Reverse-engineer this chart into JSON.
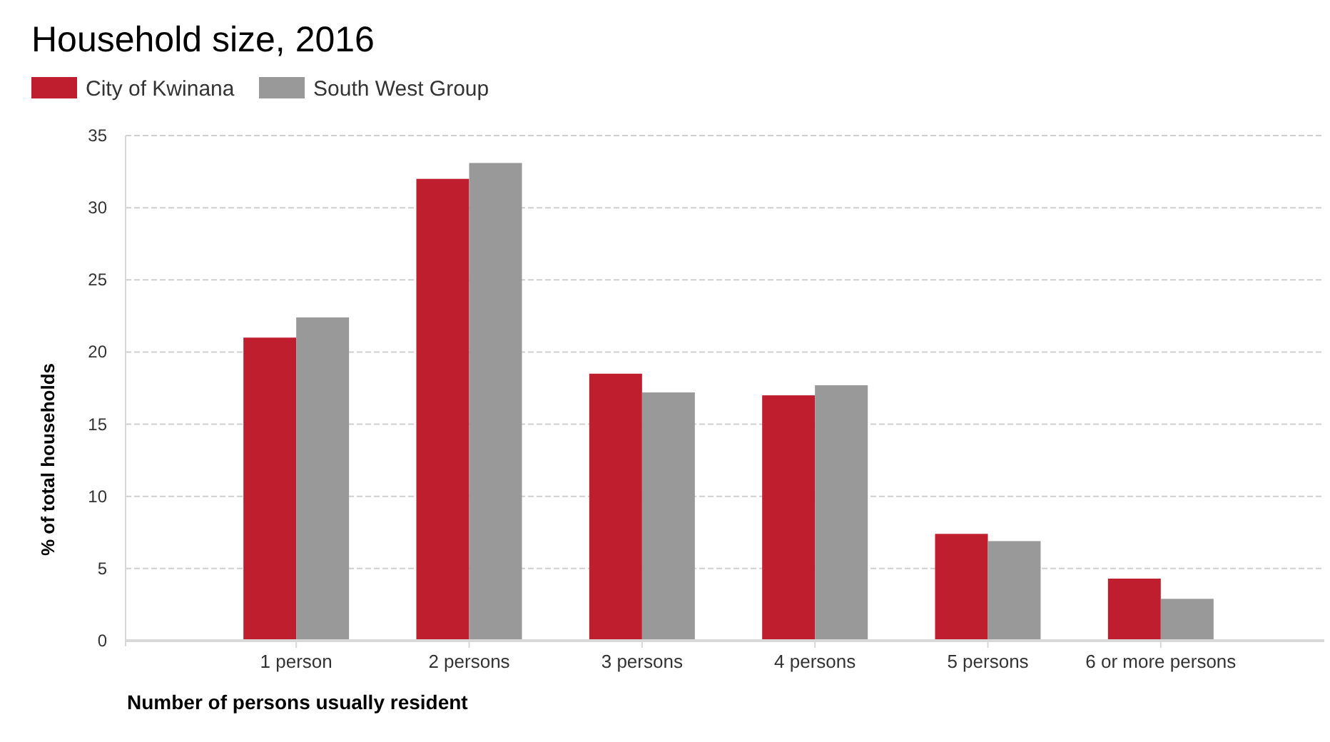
{
  "chart_data": {
    "type": "bar",
    "title": "Household size, 2016",
    "xlabel": "Number of persons usually resident",
    "ylabel": "% of total households",
    "categories": [
      "1 person",
      "2 persons",
      "3 persons",
      "4 persons",
      "5 persons",
      "6 or more persons"
    ],
    "series": [
      {
        "name": "City of Kwinana",
        "color": "#be1e2d",
        "values": [
          21.0,
          32.0,
          18.5,
          17.0,
          7.4,
          4.3
        ]
      },
      {
        "name": "South West Group",
        "color": "#999999",
        "values": [
          22.4,
          33.1,
          17.2,
          17.7,
          6.9,
          2.9
        ]
      }
    ],
    "ylim": [
      0,
      35
    ],
    "yticks": [
      0,
      5,
      10,
      15,
      20,
      25,
      30,
      35
    ],
    "grid": "y",
    "legend": "top left"
  }
}
